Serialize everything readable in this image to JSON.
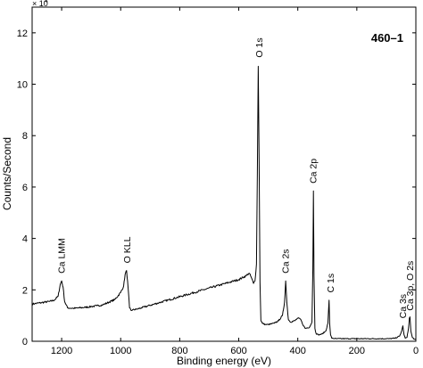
{
  "chart_data": {
    "type": "line",
    "title": "",
    "sample_label": "460–1",
    "xlabel": "Binding energy (eV)",
    "ylabel": "Counts/Second",
    "y_scale_multiplier": "× 10",
    "y_scale_exponent": "4",
    "xlim": [
      1300,
      0
    ],
    "ylim": [
      0,
      13
    ],
    "x_ticks": [
      1200,
      1000,
      800,
      600,
      400,
      200,
      0
    ],
    "y_ticks": [
      0,
      2,
      4,
      6,
      8,
      10,
      12
    ],
    "grid": false,
    "legend": "none",
    "line_color": "#000000",
    "series": [
      {
        "x": [
          1300,
          1270,
          1240,
          1225,
          1212,
          1205,
          1200,
          1195,
          1190,
          1180,
          1160,
          1140,
          1120,
          1100,
          1080,
          1060,
          1040,
          1020,
          1000,
          990,
          985,
          980,
          975,
          970,
          965,
          960,
          945,
          930,
          900,
          870,
          840,
          810,
          780,
          750,
          720,
          690,
          660,
          630,
          600,
          575,
          565,
          558,
          550,
          545,
          540,
          537,
          534,
          531,
          528,
          525,
          520,
          510,
          500,
          480,
          465,
          452,
          445,
          441,
          437,
          432,
          425,
          410,
          400,
          390,
          385,
          375,
          360,
          352,
          349,
          347,
          345,
          342,
          338,
          330,
          318,
          305,
          298,
          294,
          292,
          289,
          285,
          270,
          240,
          210,
          180,
          150,
          120,
          90,
          70,
          55,
          48,
          44,
          40,
          36,
          30,
          25,
          22,
          20,
          17,
          12,
          5,
          0
        ],
        "values": [
          1.45,
          1.5,
          1.55,
          1.6,
          1.75,
          2.2,
          2.35,
          2.1,
          1.55,
          1.3,
          1.28,
          1.3,
          1.32,
          1.35,
          1.38,
          1.42,
          1.52,
          1.62,
          1.9,
          2.15,
          2.6,
          2.75,
          2.1,
          1.3,
          1.2,
          1.22,
          1.25,
          1.3,
          1.4,
          1.5,
          1.6,
          1.7,
          1.8,
          1.9,
          2.0,
          2.1,
          2.2,
          2.3,
          2.4,
          2.55,
          2.65,
          2.5,
          2.25,
          2.35,
          3.0,
          6.5,
          10.7,
          7.0,
          2.3,
          0.8,
          0.7,
          0.65,
          0.65,
          0.7,
          0.8,
          1.0,
          1.5,
          2.35,
          1.5,
          0.85,
          0.75,
          0.8,
          0.9,
          0.85,
          0.7,
          0.5,
          0.55,
          0.75,
          2.8,
          5.85,
          2.5,
          0.5,
          0.3,
          0.25,
          0.28,
          0.4,
          0.7,
          1.6,
          0.7,
          0.25,
          0.12,
          0.1,
          0.1,
          0.1,
          0.1,
          0.1,
          0.1,
          0.1,
          0.12,
          0.2,
          0.4,
          0.6,
          0.25,
          0.12,
          0.15,
          0.5,
          0.9,
          0.95,
          0.4,
          0.15,
          0.08,
          0.05
        ]
      }
    ],
    "annotations": [
      {
        "text": "Ca LMM",
        "x": 1200,
        "y": 2.5
      },
      {
        "text": "O KLL",
        "x": 978,
        "y": 2.9
      },
      {
        "text": "O 1s",
        "x": 531,
        "y": 10.9
      },
      {
        "text": "Ca 2s",
        "x": 441,
        "y": 2.5
      },
      {
        "text": "Ca 2p",
        "x": 347,
        "y": 6.0
      },
      {
        "text": "C 1s",
        "x": 289,
        "y": 1.75
      },
      {
        "text": "Ca 3s",
        "x": 44,
        "y": 0.75
      },
      {
        "text": "Ca 3p, O 2s",
        "x": 20,
        "y": 1.05
      }
    ]
  }
}
